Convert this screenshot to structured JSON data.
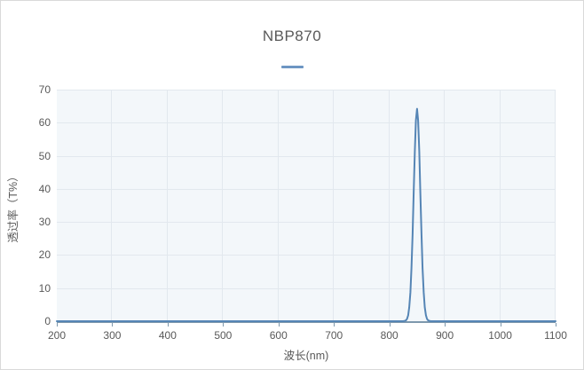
{
  "theme": {
    "border": "#d9d9d9",
    "text": "#595959",
    "plot_background": "#f3f7fa",
    "gridline": "#e2e8ee",
    "axis_line": "#7e98ad",
    "series_line": "#5585b5",
    "legend_marker": "#6d96c3"
  },
  "legend": {
    "marker_type": "line"
  },
  "chart_data": {
    "type": "line",
    "title": "NBP870",
    "xlabel": "波长(nm)",
    "ylabel": "透过率（T%）",
    "xlim": [
      200,
      1100
    ],
    "ylim": [
      0,
      70
    ],
    "x_ticks": [
      200,
      300,
      400,
      500,
      600,
      700,
      800,
      900,
      1000,
      1100
    ],
    "y_ticks": [
      0,
      10,
      20,
      30,
      40,
      50,
      60,
      70
    ],
    "grid": true,
    "legend_position": "top-center",
    "series": [
      {
        "name": "NBP870",
        "color": "#5585b5",
        "x": [
          200,
          300,
          400,
          500,
          600,
          700,
          800,
          820,
          825,
          828,
          830,
          832,
          834,
          836,
          838,
          840,
          842,
          844,
          846,
          848,
          850,
          852,
          854,
          856,
          858,
          860,
          862,
          864,
          866,
          868,
          870,
          872,
          875,
          880,
          900,
          1000,
          1100
        ],
        "values": [
          0,
          0,
          0,
          0,
          0,
          0,
          0,
          0,
          0,
          0.1,
          0.25,
          0.7,
          1.8,
          4.2,
          8.7,
          16.0,
          26.4,
          38.9,
          51.4,
          60.7,
          64.2,
          60.7,
          51.4,
          38.9,
          26.4,
          16.0,
          8.7,
          4.2,
          1.8,
          0.7,
          0.25,
          0.1,
          0,
          0,
          0,
          0,
          0
        ]
      }
    ],
    "peak": {
      "center_nm": 850,
      "max_percent": 64.2
    }
  }
}
